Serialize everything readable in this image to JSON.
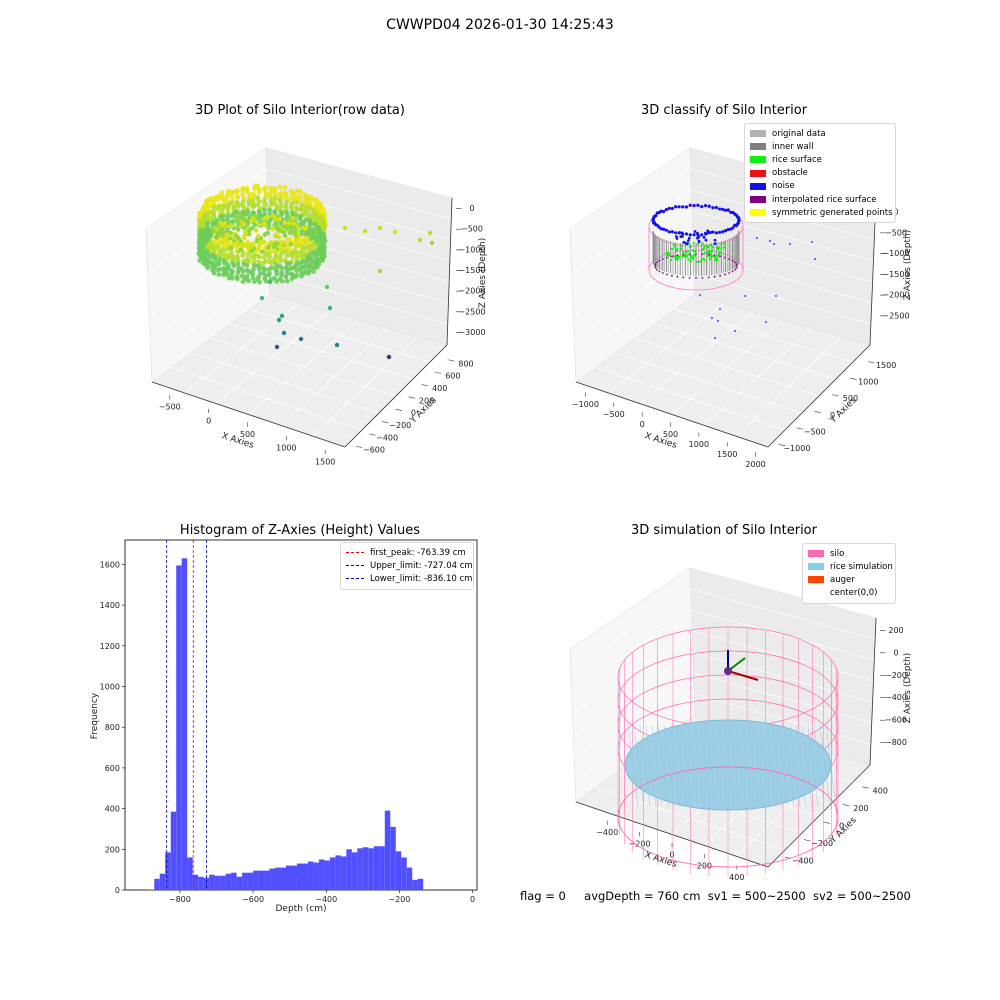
{
  "figure_title": "CWWPD04 2026-01-30 14:25:43",
  "status_line": {
    "flag": "flag = 0",
    "avg_depth": "avgDepth = 760 cm",
    "sv1": "sv1 = 500~2500",
    "sv2": "sv2 = 500~2500"
  },
  "chart_data": [
    {
      "type": "scatter",
      "title": "3D Plot of Silo Interior(row data)",
      "xlabel": "X Axies",
      "ylabel": "Y Axies",
      "zlabel": "Z Axies (Depth)",
      "x_ticks": [
        "−500",
        "0",
        "500",
        "1000",
        "1500"
      ],
      "y_ticks": [
        "−600",
        "−400",
        "−200",
        "0",
        "200",
        "400",
        "600",
        "800"
      ],
      "z_ticks": [
        "0",
        "−500",
        "−1000",
        "−1500",
        "−2000",
        "−2500",
        "−3000"
      ],
      "colormap": "viridis by depth",
      "grid": true
    },
    {
      "type": "scatter",
      "title": "3D classify of Silo Interior",
      "xlabel": "X Axies",
      "ylabel": "Y Axies",
      "zlabel": "Z Axies (Depth)",
      "x_ticks": [
        "−1000",
        "−500",
        "0",
        "500",
        "1000",
        "1500",
        "2000"
      ],
      "y_ticks": [
        "−1000",
        "−500",
        "0",
        "500",
        "1000",
        "1500"
      ],
      "z_ticks": [
        "0",
        "−500",
        "−1000",
        "−1500",
        "−2000",
        "−2500"
      ],
      "legend": [
        {
          "label": "original data",
          "color": "#b3b3b3"
        },
        {
          "label": "inner wall",
          "color": "#808080"
        },
        {
          "label": "rice surface",
          "color": "#11ee11"
        },
        {
          "label": "obstacle",
          "color": "#ee1111"
        },
        {
          "label": "noise",
          "color": "#1111ee"
        },
        {
          "label": "interpolated rice surface",
          "color": "#800080"
        },
        {
          "label": "symmetric generated points",
          "color": "#ffff00"
        }
      ],
      "legend_position": "top-right",
      "grid": true
    },
    {
      "type": "bar",
      "title": "Histogram of Z-Axies (Height) Values",
      "xlabel": "Depth (cm)",
      "ylabel": "Frequency",
      "xlim": [
        -950,
        12
      ],
      "ylim": [
        0,
        1720
      ],
      "x_ticks": [
        -800,
        -600,
        -400,
        -200,
        0
      ],
      "x_tick_labels": [
        "−800",
        "−600",
        "−400",
        "−200",
        "0"
      ],
      "y_ticks": [
        0,
        200,
        400,
        600,
        800,
        1000,
        1200,
        1400,
        1600
      ],
      "bar_color": "#5050ff",
      "bins": {
        "start": -885,
        "width": 15,
        "values": [
          2,
          55,
          80,
          185,
          385,
          1595,
          1630,
          160,
          75,
          65,
          60,
          75,
          70,
          70,
          80,
          85,
          65,
          85,
          85,
          95,
          95,
          95,
          105,
          110,
          110,
          120,
          120,
          130,
          130,
          140,
          135,
          150,
          145,
          160,
          170,
          165,
          200,
          185,
          205,
          210,
          205,
          215,
          215,
          390,
          310,
          190,
          160,
          110,
          50,
          55
        ]
      },
      "reference_lines": [
        {
          "label": "first_peak: -763.39 cm",
          "x": -763.39,
          "color": "#ff0000"
        },
        {
          "label": "Upper_limit: -727.04 cm",
          "x": -727.04,
          "color": "#0000aa"
        },
        {
          "label": "Lower_limit: -836.10 cm",
          "x": -836.1,
          "color": "#0000aa"
        }
      ],
      "legend_position": "top-right"
    },
    {
      "type": "scatter",
      "title": "3D simulation of Silo Interior",
      "xlabel": "X Axies",
      "ylabel": "Y Axies",
      "zlabel": "Z Axies (Depth)",
      "x_ticks": [
        "−400",
        "−200",
        "0",
        "200",
        "400"
      ],
      "y_ticks": [
        "−400",
        "−200",
        "0",
        "200",
        "400"
      ],
      "z_ticks": [
        "200",
        "0",
        "−200",
        "−400",
        "−600",
        "−800"
      ],
      "legend": [
        {
          "label": "silo",
          "color": "#ff69b4"
        },
        {
          "label": "rice simulation",
          "color": "#87ceeb"
        },
        {
          "label": "auger",
          "color": "#ff4500"
        },
        {
          "label": "center(0,0)",
          "color": ""
        }
      ],
      "legend_position": "top-right",
      "grid": true
    }
  ]
}
